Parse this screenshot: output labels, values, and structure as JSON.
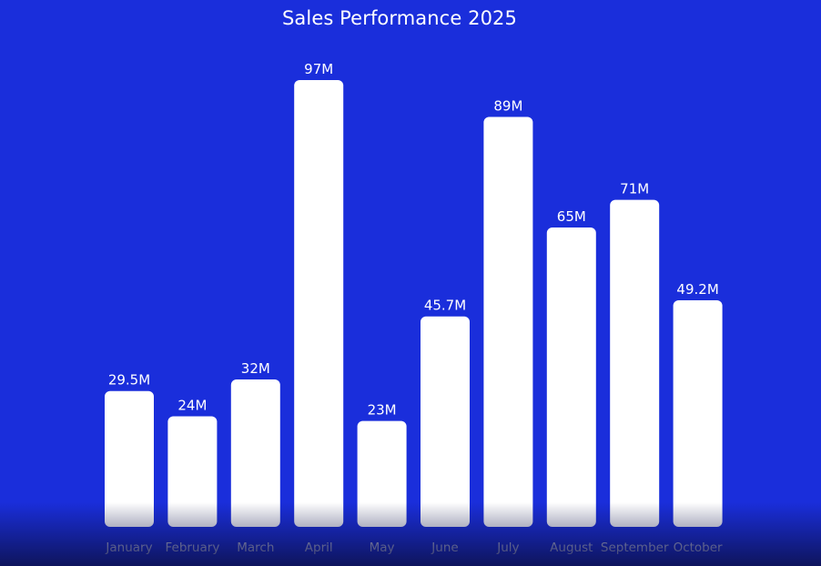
{
  "colors": {
    "background": "#1a2edb",
    "bar": "#ffffff",
    "value_label": "#ffffff",
    "category_label": "#cfd3ee"
  },
  "chart_data": {
    "type": "bar",
    "title": "Sales Performance 2025",
    "categories": [
      "January",
      "February",
      "March",
      "April",
      "May",
      "June",
      "July",
      "August",
      "September",
      "October"
    ],
    "values": [
      29.5,
      24,
      32,
      97,
      23,
      45.7,
      89,
      65,
      71,
      49.2
    ],
    "value_labels": [
      "29.5M",
      "24M",
      "32M",
      "97M",
      "23M",
      "45.7M",
      "89M",
      "65M",
      "71M",
      "49.2M"
    ],
    "ylim": [
      0,
      97
    ],
    "grid": false,
    "legend": "none"
  }
}
